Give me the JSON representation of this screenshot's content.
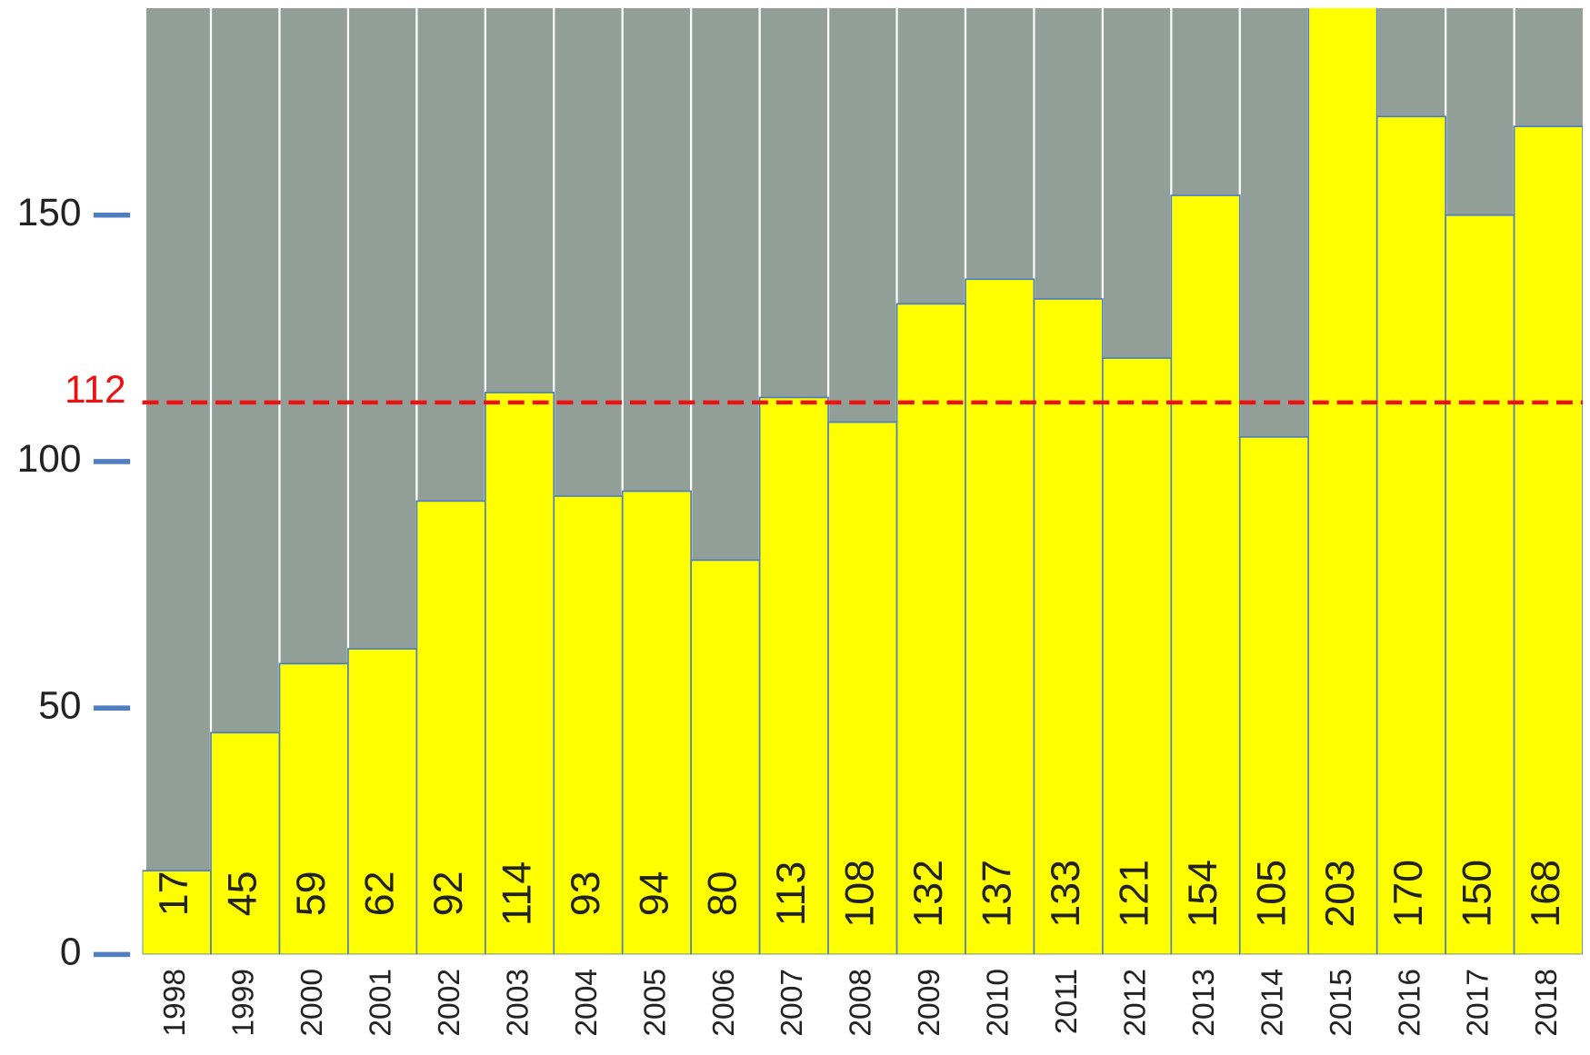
{
  "chart_data": {
    "type": "bar",
    "categories": [
      "1998",
      "1999",
      "2000",
      "2001",
      "2002",
      "2003",
      "2004",
      "2005",
      "2006",
      "2007",
      "2008",
      "2009",
      "2010",
      "2011",
      "2012",
      "2013",
      "2014",
      "2015",
      "2016",
      "2017",
      "2018"
    ],
    "values": [
      17,
      45,
      59,
      62,
      92,
      114,
      93,
      94,
      80,
      113,
      108,
      132,
      137,
      133,
      121,
      154,
      105,
      203,
      170,
      150,
      168
    ],
    "color": "#ffff00",
    "background": "#929f98",
    "ylim": [
      0,
      192
    ],
    "yticks": [
      0,
      50,
      100,
      150
    ],
    "reference_line": 112,
    "reference_color": "#ee1111"
  }
}
